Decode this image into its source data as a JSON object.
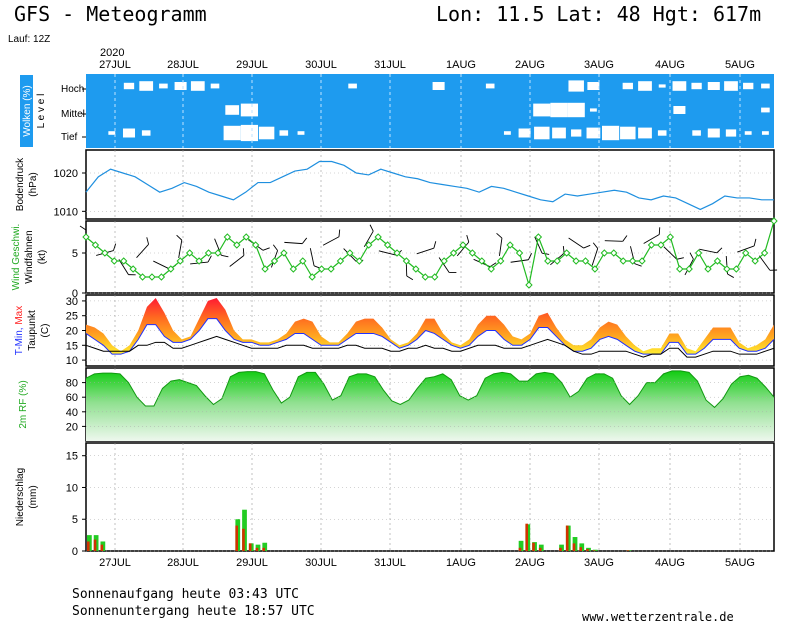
{
  "header": {
    "title": "GFS - Meteogramm",
    "location": "Lon: 11.5 Lat: 48 Hgt: 617m",
    "run": "Lauf: 12Z"
  },
  "footer": {
    "sunrise": "Sonnenaufgang heute 03:43 UTC",
    "sunset": "Sonnenuntergang heute 18:57 UTC",
    "source": "www.wetterzentrale.de"
  },
  "chart_data": [
    {
      "type": "heatmap",
      "title": "Wolken (%)",
      "ylabel": "L e v e l",
      "levels": [
        "Hoch",
        "Mittel",
        "Tief"
      ],
      "x_labels": [
        "27JUL",
        "28JUL",
        "29JUL",
        "30JUL",
        "31JUL",
        "1AUG",
        "2AUG",
        "3AUG",
        "4AUG",
        "5AUG"
      ],
      "year_label": "2020",
      "colors": {
        "cover": "#ffffff",
        "clear": "#1e9bef"
      },
      "hoch": [
        0,
        0,
        0.4,
        0.6,
        0.3,
        0.5,
        0.6,
        0.3,
        0,
        0,
        0,
        0,
        0,
        0,
        0,
        0.3,
        0,
        0,
        0,
        0,
        0.5,
        0,
        0,
        0.3,
        0,
        0,
        0,
        0,
        0.7,
        0.5,
        0,
        0.4,
        0.6,
        0.2,
        0.6,
        0.4,
        0.5,
        0.6,
        0.4,
        0.3
      ],
      "mittel": [
        0,
        0,
        0,
        0,
        0,
        0,
        0,
        0,
        0.6,
        0.8,
        0,
        0,
        0,
        0,
        0,
        0,
        0,
        0,
        0,
        0,
        0,
        0,
        0,
        0,
        0,
        0,
        0.8,
        0.9,
        0.9,
        0.2,
        0,
        0,
        0,
        0,
        0.5,
        0,
        0,
        0,
        0,
        0.3
      ],
      "tief": [
        0,
        0.2,
        0.5,
        0.3,
        0,
        0,
        0,
        0,
        0.8,
        0.9,
        0.7,
        0.3,
        0.2,
        0,
        0,
        0,
        0,
        0,
        0,
        0,
        0,
        0,
        0,
        0,
        0.2,
        0.5,
        0.7,
        0.6,
        0.4,
        0.6,
        0.8,
        0.7,
        0.6,
        0.3,
        0,
        0.3,
        0.5,
        0.4,
        0.2,
        0.2
      ]
    },
    {
      "type": "line",
      "ylabel": "Bodendruck (hPa)",
      "yticks": [
        1010,
        1020
      ],
      "ylim": [
        1008,
        1026
      ],
      "color": "#1e8fdf",
      "values": [
        1015,
        1019,
        1021,
        1020,
        1019,
        1017,
        1015,
        1016,
        1017.5,
        1016.5,
        1015,
        1014,
        1013,
        1015,
        1017.5,
        1017.5,
        1019,
        1020.5,
        1021,
        1023,
        1023,
        1022,
        1020,
        1019.5,
        1021,
        1020,
        1019,
        1018.5,
        1017.5,
        1017,
        1016.5,
        1016,
        1015,
        1016.5,
        1016,
        1015,
        1014,
        1013,
        1012.5,
        1014.5,
        1014,
        1014.5,
        1015,
        1015.5,
        1015,
        1013.5,
        1013,
        1014,
        1013.5,
        1012,
        1010.5,
        1012,
        1014,
        1013.5,
        1013.5,
        1013,
        1013
      ]
    },
    {
      "type": "line",
      "ylabel": "Wind Geschwi. Windfahnen (kt)",
      "yticks": [
        0,
        5
      ],
      "ylim": [
        0,
        9
      ],
      "color": "#22bb22",
      "values": [
        7,
        6,
        5,
        4,
        4,
        3,
        2,
        2,
        2,
        3,
        4,
        5,
        4,
        5,
        5,
        7,
        6,
        7,
        6,
        3,
        4,
        5,
        3,
        4,
        2,
        3,
        3,
        4,
        5,
        4,
        6,
        7,
        6,
        5,
        4,
        3,
        2,
        2,
        4,
        5,
        6,
        5,
        4,
        3,
        4,
        6,
        5,
        1,
        7,
        4,
        4,
        5,
        4,
        4,
        3,
        5,
        5,
        4,
        4,
        4,
        6,
        6,
        7,
        3,
        3,
        5,
        3,
        4,
        3,
        3,
        5,
        4,
        5,
        9
      ]
    },
    {
      "type": "area",
      "ylabel": "T-Min, Max Taupunkt (C)",
      "yticks": [
        10,
        15,
        20,
        25,
        30
      ],
      "ylim": [
        8,
        32
      ],
      "series": [
        {
          "name": "T-Max",
          "color": "#ff3030",
          "values": [
            22,
            21,
            19,
            15,
            13,
            15,
            20,
            28,
            31,
            26,
            20,
            17,
            18,
            24,
            30,
            31,
            27,
            20,
            17,
            17,
            16,
            16,
            17,
            19,
            23,
            24,
            23,
            18,
            16,
            16,
            19,
            23,
            24,
            24,
            21,
            17,
            15,
            16,
            19,
            24,
            24,
            19,
            16,
            15,
            17,
            22,
            25,
            25,
            22,
            18,
            17,
            19,
            25,
            26,
            21,
            17,
            15,
            15,
            17,
            21,
            23,
            22,
            18,
            15,
            13,
            14,
            14,
            19,
            19,
            14,
            13,
            17,
            21,
            21,
            21,
            16,
            14,
            15,
            17,
            22
          ]
        },
        {
          "name": "T-Min",
          "color": "#2030ff",
          "values": [
            19,
            17,
            15,
            12,
            12,
            13,
            17,
            22,
            22,
            18,
            16,
            16,
            17,
            20,
            24,
            24,
            20,
            17,
            16,
            16,
            15,
            15,
            16,
            17,
            19,
            19,
            17,
            15,
            15,
            15,
            17,
            19,
            19,
            19,
            18,
            16,
            14,
            15,
            17,
            20,
            19,
            17,
            15,
            14,
            15,
            18,
            20,
            20,
            17,
            15,
            15,
            17,
            21,
            21,
            18,
            15,
            13,
            13,
            14,
            17,
            18,
            17,
            15,
            13,
            12,
            12,
            12,
            16,
            16,
            12,
            12,
            14,
            17,
            17,
            17,
            14,
            13,
            13,
            14,
            17
          ]
        },
        {
          "name": "Taupunkt",
          "color": "#000000",
          "values": [
            15,
            14,
            13,
            13,
            13,
            13,
            15,
            15,
            16,
            16,
            14,
            14,
            15,
            16,
            17,
            18,
            17,
            16,
            15,
            14,
            14,
            14,
            14,
            15,
            15,
            15,
            14,
            14,
            14,
            14,
            15,
            15,
            14,
            14,
            14,
            13,
            13,
            14,
            14,
            15,
            14,
            14,
            13,
            13,
            14,
            15,
            15,
            15,
            14,
            14,
            14,
            15,
            16,
            17,
            16,
            15,
            13,
            12,
            12,
            13,
            13,
            13,
            13,
            12,
            11,
            12,
            12,
            14,
            14,
            11,
            11,
            12,
            13,
            13,
            13,
            12,
            12,
            12,
            13,
            14
          ]
        }
      ]
    },
    {
      "type": "area",
      "ylabel": "2m RF (%)",
      "yticks": [
        20,
        40,
        60,
        80
      ],
      "ylim": [
        0,
        100
      ],
      "color": "#22cc22",
      "values": [
        86,
        92,
        93,
        93,
        92,
        80,
        60,
        48,
        48,
        72,
        82,
        84,
        80,
        76,
        62,
        50,
        58,
        88,
        94,
        95,
        95,
        92,
        70,
        52,
        60,
        88,
        94,
        94,
        78,
        56,
        62,
        88,
        92,
        92,
        88,
        70,
        55,
        50,
        56,
        72,
        86,
        88,
        92,
        84,
        62,
        56,
        62,
        86,
        92,
        94,
        92,
        82,
        82,
        92,
        94,
        92,
        80,
        60,
        68,
        86,
        92,
        92,
        86,
        62,
        50,
        62,
        80,
        80,
        92,
        96,
        96,
        94,
        82,
        56,
        46,
        58,
        78,
        88,
        90,
        86,
        74,
        60
      ]
    },
    {
      "type": "bar",
      "ylabel": "Niederschlag (mm)",
      "yticks": [
        0,
        5,
        10,
        15
      ],
      "ylim": [
        0,
        17
      ],
      "series": [
        {
          "name": "convective",
          "color": "#d23200",
          "values": [
            1.5,
            1.8,
            1,
            0,
            0,
            0,
            0,
            0,
            0,
            0,
            0,
            0,
            0,
            0,
            0,
            0,
            0,
            0,
            0,
            0,
            0,
            0,
            4,
            3.5,
            1.2,
            0.5,
            0.5,
            0,
            0,
            0,
            0,
            0,
            0,
            0,
            0,
            0,
            0,
            0,
            0,
            0,
            0,
            0,
            0,
            0,
            0,
            0,
            0,
            0,
            0,
            0,
            0,
            0,
            0,
            0,
            0,
            0,
            0,
            0,
            0,
            0,
            0,
            0,
            0,
            0,
            0.5,
            4.3,
            1.3,
            0.5,
            0,
            0,
            0.5,
            4,
            1.2,
            0.6,
            0.3,
            0.1,
            0,
            0,
            0,
            0,
            0.1,
            0,
            0,
            0,
            0,
            0,
            0,
            0,
            0,
            0,
            0,
            0,
            0,
            0,
            0,
            0,
            0,
            0,
            0,
            0,
            0,
            0
          ]
        },
        {
          "name": "total",
          "color": "#22cc22",
          "values": [
            2.5,
            2.5,
            1.5,
            0,
            0,
            0,
            0,
            0,
            0,
            0,
            0,
            0,
            0,
            0,
            0,
            0,
            0,
            0,
            0,
            0,
            0,
            0,
            5,
            6.5,
            1.2,
            1,
            1.3,
            0,
            0,
            0,
            0,
            0,
            0,
            0,
            0,
            0,
            0,
            0,
            0,
            0,
            0,
            0,
            0,
            0,
            0,
            0,
            0,
            0,
            0,
            0,
            0,
            0,
            0,
            0,
            0,
            0,
            0,
            0,
            0,
            0,
            0,
            0,
            0,
            0,
            1.6,
            4.2,
            1.4,
            1,
            0,
            0,
            1,
            4,
            2.2,
            1.2,
            0.5,
            0.2,
            0,
            0,
            0,
            0,
            0.1,
            0,
            0,
            0,
            0,
            0,
            0,
            0,
            0,
            0,
            0,
            0,
            0,
            0,
            0,
            0,
            0,
            0,
            0,
            0,
            0,
            0
          ]
        }
      ]
    }
  ]
}
